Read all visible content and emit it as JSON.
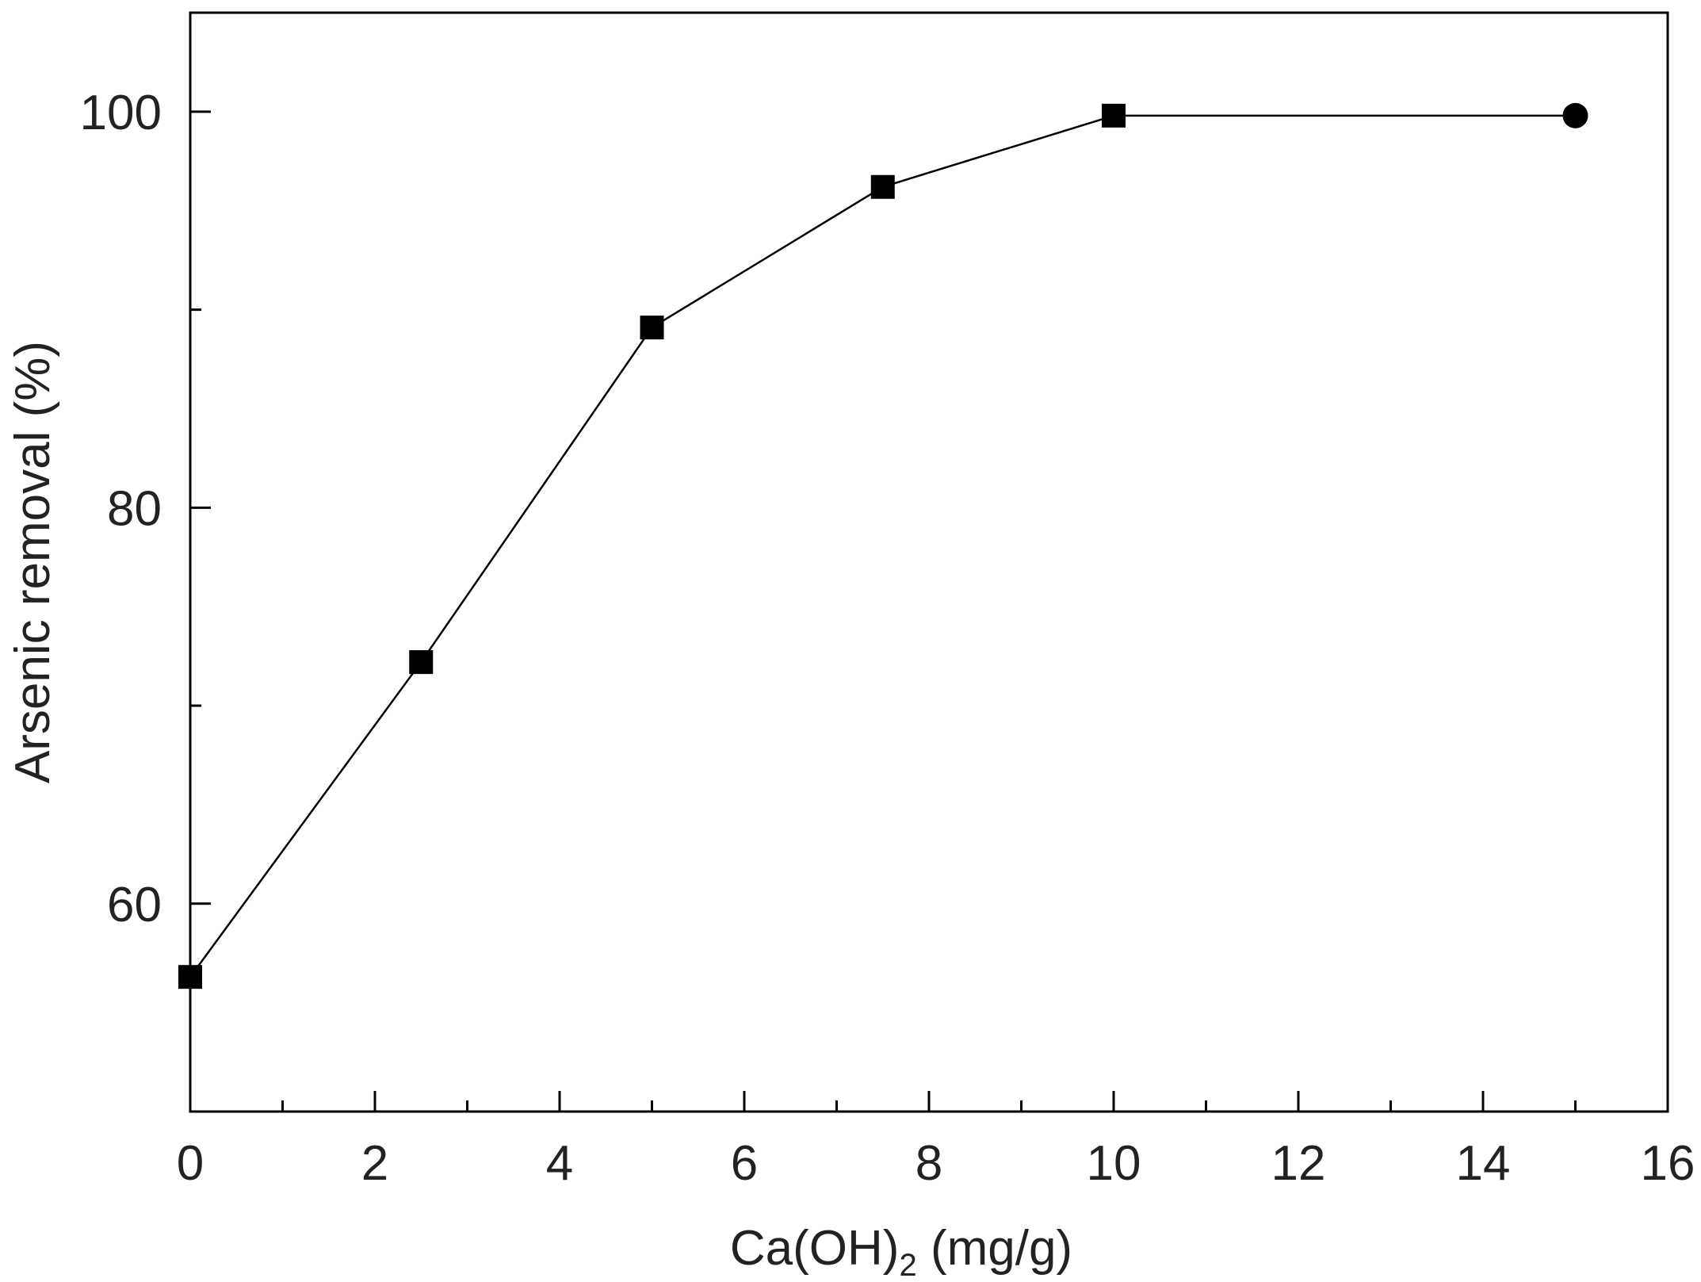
{
  "chart_data": {
    "type": "line",
    "title": "",
    "xlabel": {
      "main": "Ca(OH)",
      "subscript": "2",
      "suffix": " (mg/g)"
    },
    "ylabel": "Arsenic removal (%)",
    "xlim": [
      0,
      16
    ],
    "ylim": [
      49.5,
      105
    ],
    "x_ticks": [
      0,
      2,
      4,
      6,
      8,
      10,
      12,
      14,
      16
    ],
    "x_minor_ticks": [
      1,
      3,
      5,
      7,
      9,
      11,
      13,
      15
    ],
    "y_ticks": [
      60,
      80,
      100
    ],
    "y_minor_ticks": [
      70,
      90
    ],
    "grid": false,
    "legend": "none",
    "series": [
      {
        "x": [
          0,
          2.5,
          5,
          7.5,
          10,
          15
        ],
        "y": [
          56.3,
          72.2,
          89.1,
          96.2,
          99.8,
          99.8
        ],
        "markers": [
          "square",
          "square",
          "square",
          "square",
          "square",
          "circle"
        ],
        "color": "#000000"
      }
    ]
  }
}
